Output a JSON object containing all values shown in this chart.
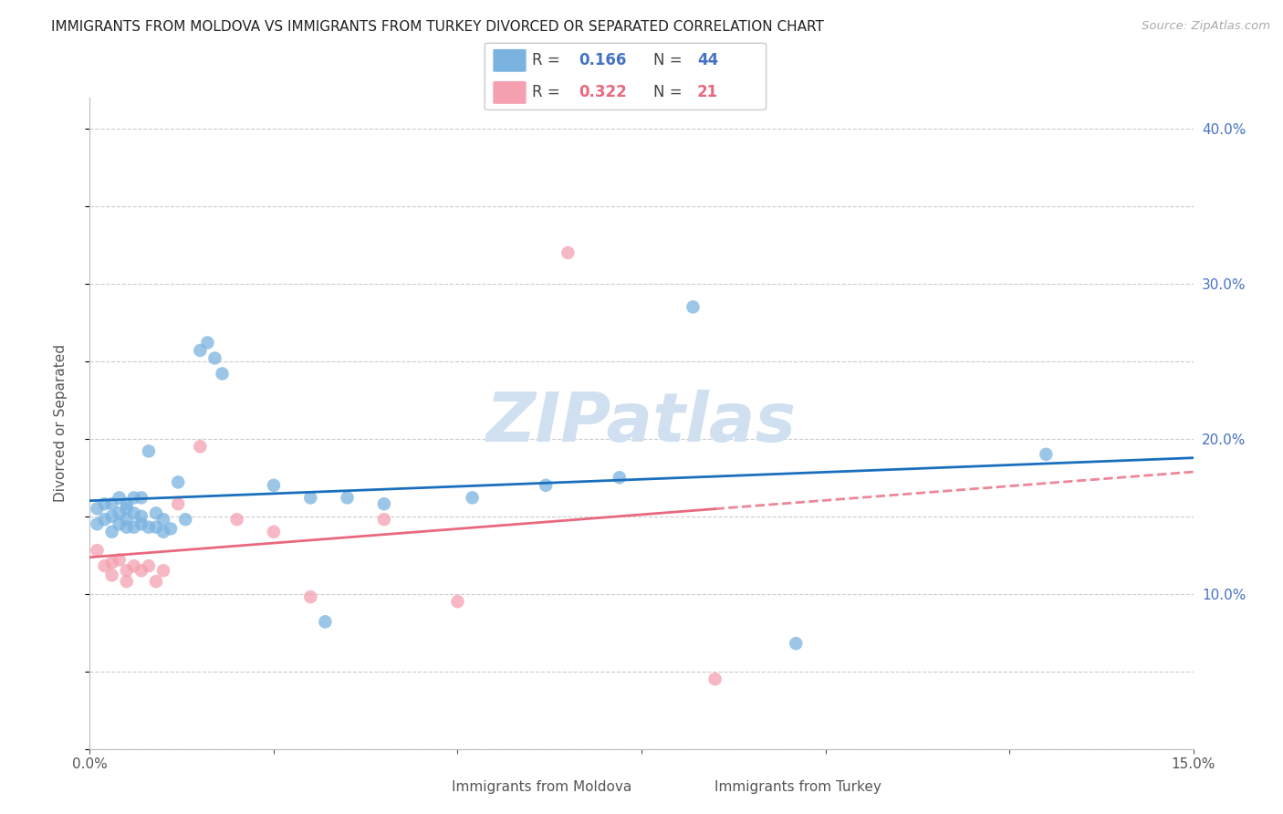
{
  "title": "IMMIGRANTS FROM MOLDOVA VS IMMIGRANTS FROM TURKEY DIVORCED OR SEPARATED CORRELATION CHART",
  "source": "Source: ZipAtlas.com",
  "ylabel": "Divorced or Separated",
  "xlim": [
    0.0,
    0.15
  ],
  "ylim": [
    0.0,
    0.42
  ],
  "moldova_color": "#7ab3e0",
  "turkey_color": "#f4a0b0",
  "moldova_line_color": "#1a6fbd",
  "turkey_line_color": "#e8697d",
  "watermark_color": "#d0e0f0",
  "legend_r_moldova": "0.166",
  "legend_n_moldova": "44",
  "legend_r_turkey": "0.322",
  "legend_n_turkey": "21",
  "moldova_x": [
    0.001,
    0.001,
    0.002,
    0.002,
    0.003,
    0.003,
    0.003,
    0.004,
    0.004,
    0.004,
    0.005,
    0.005,
    0.005,
    0.005,
    0.006,
    0.006,
    0.006,
    0.007,
    0.007,
    0.007,
    0.008,
    0.008,
    0.009,
    0.009,
    0.01,
    0.01,
    0.011,
    0.012,
    0.013,
    0.015,
    0.016,
    0.017,
    0.018,
    0.025,
    0.03,
    0.032,
    0.035,
    0.04,
    0.052,
    0.062,
    0.072,
    0.082,
    0.096,
    0.13
  ],
  "moldova_y": [
    0.145,
    0.155,
    0.148,
    0.158,
    0.14,
    0.15,
    0.158,
    0.152,
    0.145,
    0.162,
    0.155,
    0.158,
    0.148,
    0.143,
    0.162,
    0.152,
    0.143,
    0.162,
    0.15,
    0.145,
    0.192,
    0.143,
    0.152,
    0.143,
    0.148,
    0.14,
    0.142,
    0.172,
    0.148,
    0.257,
    0.262,
    0.252,
    0.242,
    0.17,
    0.162,
    0.082,
    0.162,
    0.158,
    0.162,
    0.17,
    0.175,
    0.285,
    0.068,
    0.19
  ],
  "turkey_x": [
    0.001,
    0.002,
    0.003,
    0.003,
    0.004,
    0.005,
    0.005,
    0.006,
    0.007,
    0.008,
    0.009,
    0.01,
    0.012,
    0.015,
    0.02,
    0.025,
    0.03,
    0.04,
    0.05,
    0.065,
    0.085
  ],
  "turkey_y": [
    0.128,
    0.118,
    0.12,
    0.112,
    0.122,
    0.115,
    0.108,
    0.118,
    0.115,
    0.118,
    0.108,
    0.115,
    0.158,
    0.195,
    0.148,
    0.14,
    0.098,
    0.148,
    0.095,
    0.32,
    0.045
  ]
}
